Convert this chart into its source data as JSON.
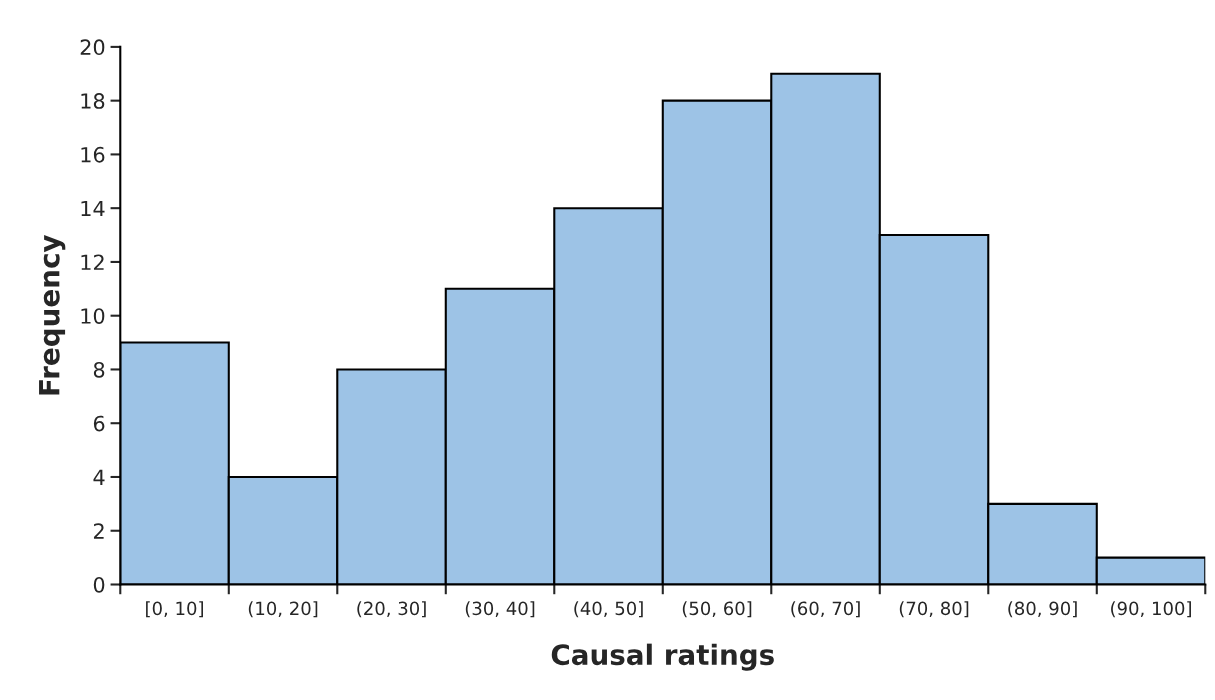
{
  "chart_data": {
    "type": "bar",
    "xlabel": "Causal ratings",
    "ylabel": "Frequency",
    "categories": [
      "[0, 10]",
      "(10, 20]",
      "(20, 30]",
      "(30, 40]",
      "(40, 50]",
      "(50, 60]",
      "(60, 70]",
      "(70, 80]",
      "(80, 90]",
      "(90, 100]"
    ],
    "values": [
      9,
      4,
      8,
      11,
      14,
      18,
      19,
      13,
      3,
      1
    ],
    "color": "#9dc3e6",
    "ylim": [
      0,
      20
    ],
    "yticks": [
      0,
      2,
      4,
      6,
      8,
      10,
      12,
      14,
      16,
      18,
      20
    ],
    "grid": false,
    "legend": false
  }
}
